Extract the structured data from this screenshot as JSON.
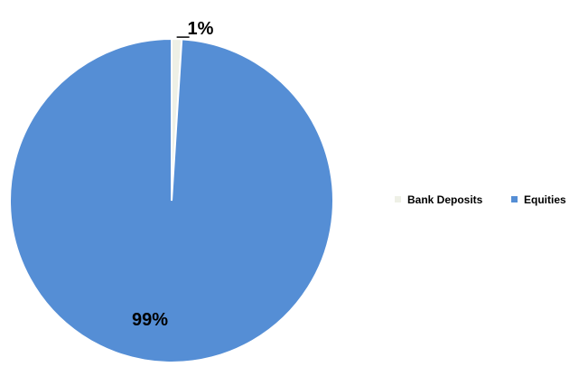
{
  "chart_data": {
    "type": "pie",
    "categories": [
      "Bank Deposits",
      "Equities"
    ],
    "values": [
      1,
      99
    ],
    "data_labels": [
      "1%",
      "99%"
    ],
    "colors": [
      "#eef0e6",
      "#558ed5"
    ],
    "legend_placement": "right",
    "title": "",
    "xlabel": "",
    "ylabel": ""
  }
}
